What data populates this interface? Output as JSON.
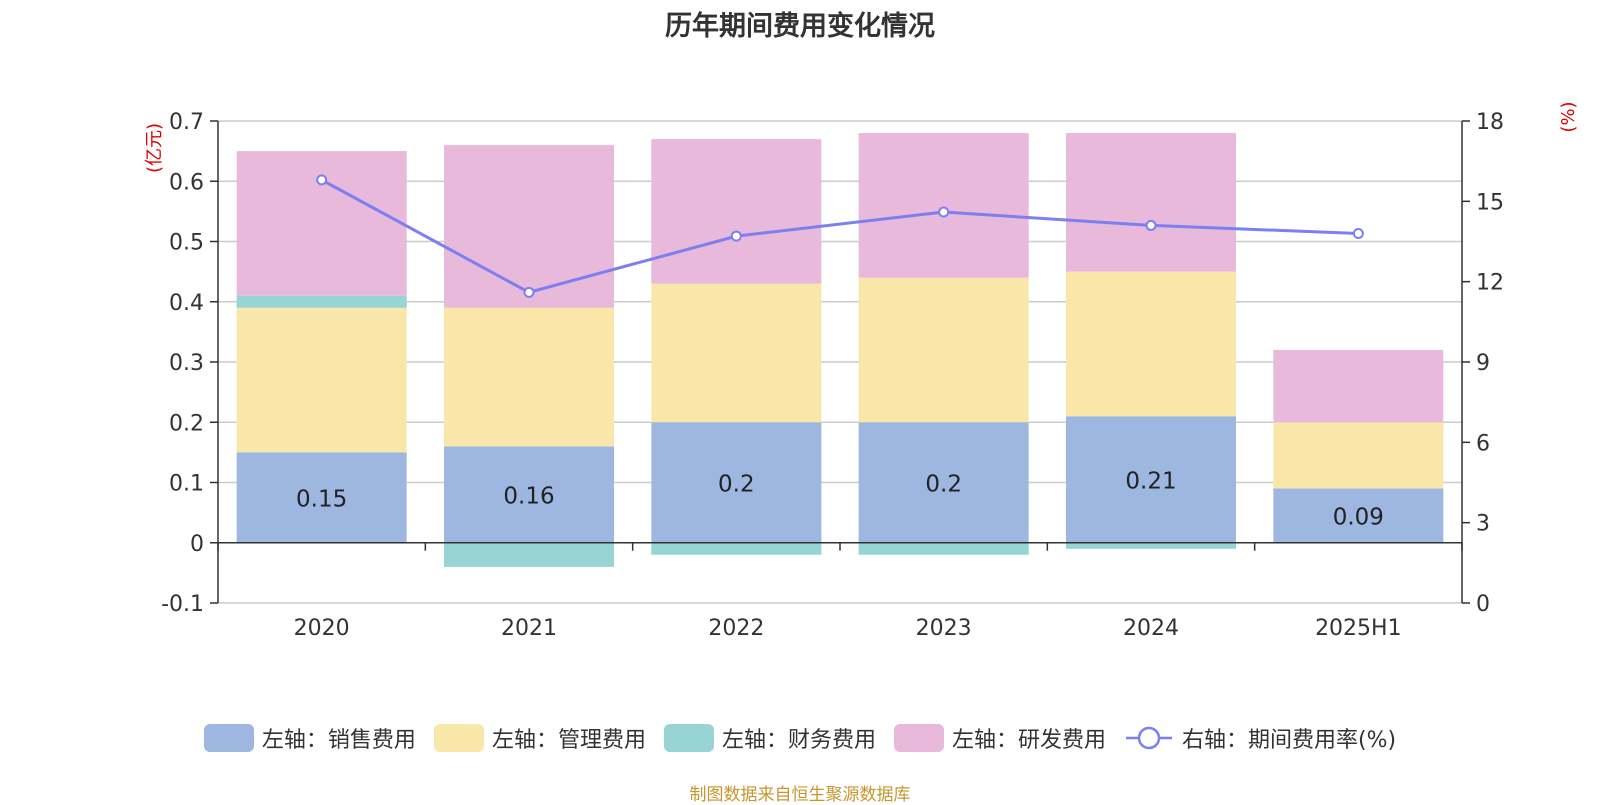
{
  "chart_data": {
    "type": "bar",
    "stacked": true,
    "title": "历年期间费用变化情况",
    "categories": [
      "2020",
      "2021",
      "2022",
      "2023",
      "2024",
      "2025H1"
    ],
    "series": [
      {
        "name": "左轴：销售费用",
        "axis": "left",
        "color": "#9db7e1",
        "values": [
          0.15,
          0.16,
          0.2,
          0.2,
          0.21,
          0.09
        ],
        "labels": [
          "0.15",
          "0.16",
          "0.2",
          "0.2",
          "0.21",
          "0.09"
        ]
      },
      {
        "name": "左轴：管理费用",
        "axis": "left",
        "color": "#f8e7a8",
        "values": [
          0.24,
          0.23,
          0.23,
          0.24,
          0.24,
          0.11
        ]
      },
      {
        "name": "左轴：财务费用",
        "axis": "left",
        "color": "#97d4d4",
        "values": [
          0.02,
          -0.04,
          -0.02,
          -0.02,
          -0.01,
          0.0
        ]
      },
      {
        "name": "左轴：研发费用",
        "axis": "left",
        "color": "#e8b9da",
        "values": [
          0.24,
          0.27,
          0.24,
          0.24,
          0.23,
          0.12
        ]
      }
    ],
    "line": {
      "type": "line",
      "name": "右轴：期间费用率(%)",
      "axis": "right",
      "color": "#7b7ff0",
      "values": [
        15.8,
        11.6,
        13.7,
        14.6,
        14.1,
        13.8
      ]
    },
    "y_left": {
      "unit": "(亿元)",
      "ylim": [
        -0.1,
        0.7
      ],
      "ticks": [
        "-0.1",
        "0",
        "0.1",
        "0.2",
        "0.3",
        "0.4",
        "0.5",
        "0.6",
        "0.7"
      ]
    },
    "y_right": {
      "unit": "(%)",
      "ylim": [
        0,
        18
      ],
      "ticks": [
        "0",
        "3",
        "6",
        "9",
        "12",
        "15",
        "18"
      ]
    },
    "grid": true,
    "legend_position": "bottom"
  },
  "source_note": "制图数据来自恒生聚源数据库"
}
